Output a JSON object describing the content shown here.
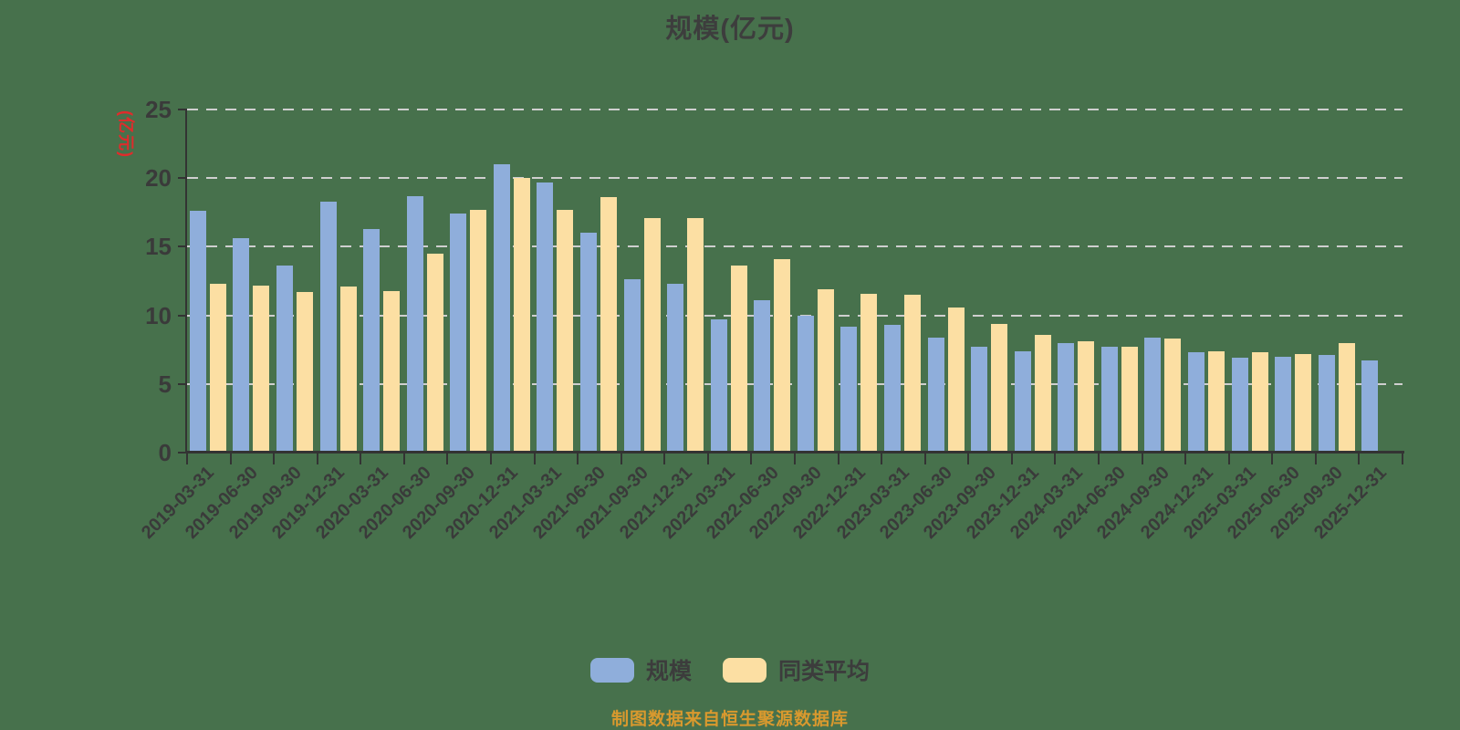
{
  "title": "规模(亿元)",
  "y_axis": {
    "unit_label": "(亿元)",
    "unit_color": "#E02B2B"
  },
  "legend": {
    "items": [
      {
        "label": "规模",
        "color": "#8FAEDB"
      },
      {
        "label": "同类平均",
        "color": "#FCDFA3"
      }
    ]
  },
  "footer": {
    "note": "制图数据来自恒生聚源数据库",
    "color": "#D9992E"
  },
  "colors": {
    "background": "#47714C",
    "bar_blue": "#8FAEDB",
    "bar_yellow": "#FCDFA3",
    "gridline": "#CFCFCF",
    "axis": "#333333",
    "text": "#3A3A3A"
  },
  "chart_data": {
    "type": "bar",
    "title": "规模(亿元)",
    "categories": [
      "2019-03-31",
      "2019-06-30",
      "2019-09-30",
      "2019-12-31",
      "2020-03-31",
      "2020-06-30",
      "2020-09-30",
      "2020-12-31",
      "2021-03-31",
      "2021-06-30",
      "2021-09-30",
      "2021-12-31",
      "2022-03-31",
      "2022-06-30",
      "2022-09-30",
      "2022-12-31",
      "2023-03-31",
      "2023-06-30",
      "2023-09-30",
      "2023-12-31",
      "2024-03-31",
      "2024-06-30",
      "2024-09-30",
      "2024-12-31",
      "2025-03-31",
      "2025-06-30",
      "2025-09-30",
      "2025-12-31"
    ],
    "series": [
      {
        "name": "规模",
        "color": "#8FAEDB",
        "values": [
          17.6,
          15.6,
          13.6,
          18.3,
          16.3,
          18.7,
          17.4,
          21.0,
          19.7,
          16.0,
          12.6,
          12.3,
          9.7,
          11.1,
          10.0,
          9.2,
          9.3,
          8.4,
          7.7,
          7.4,
          8.0,
          7.7,
          8.4,
          7.3,
          6.9,
          7.0,
          7.1,
          6.7
        ]
      },
      {
        "name": "同类平均",
        "color": "#FCDFA3",
        "values": [
          12.3,
          12.2,
          11.7,
          12.1,
          11.8,
          14.5,
          17.7,
          20.0,
          17.7,
          18.6,
          17.1,
          17.1,
          13.6,
          14.1,
          11.9,
          11.6,
          11.5,
          10.6,
          9.4,
          8.6,
          8.1,
          7.7,
          8.3,
          7.4,
          7.3,
          7.2,
          8.0,
          null
        ]
      }
    ],
    "ylim": [
      0,
      25
    ],
    "yticks": [
      0,
      5,
      10,
      15,
      20,
      25
    ],
    "ylabel": "(亿元)",
    "grid": "horizontal-dashed",
    "legend_position": "bottom"
  }
}
